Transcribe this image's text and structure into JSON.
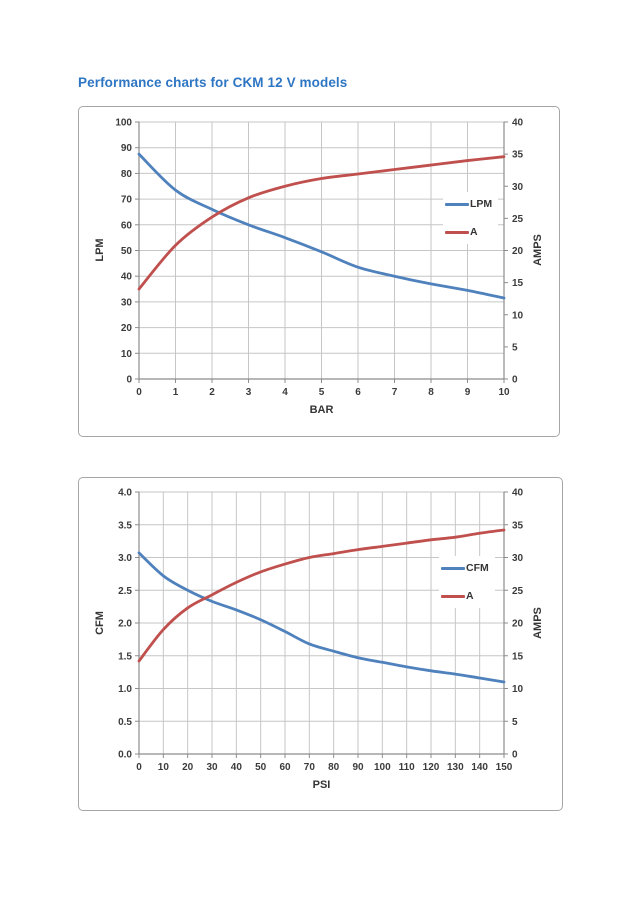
{
  "page": {
    "title": "Performance charts for CKM 12 V models"
  },
  "colors": {
    "series_blue": "#4F81BD",
    "series_red": "#C0504D",
    "gridline": "#C6C6C6",
    "axis_line": "#8C8C8C",
    "tick_text": "#3b3b3b",
    "title_blue": "#2e76c3"
  },
  "chart_data": [
    {
      "type": "line",
      "title": "",
      "xlabel": "BAR",
      "ylabel_left": "LPM",
      "ylabel_right": "AMPS",
      "xlim": [
        0,
        10
      ],
      "x_ticks": [
        "0",
        "1",
        "2",
        "3",
        "4",
        "5",
        "6",
        "7",
        "8",
        "9",
        "10"
      ],
      "x": [
        0,
        1,
        2,
        3,
        4,
        5,
        6,
        7,
        8,
        9,
        10
      ],
      "left_axis": {
        "range": [
          0,
          100
        ],
        "ticks": [
          "0",
          "10",
          "20",
          "30",
          "40",
          "50",
          "60",
          "70",
          "80",
          "90",
          "100"
        ]
      },
      "right_axis": {
        "range": [
          0,
          40
        ],
        "ticks": [
          "0",
          "5",
          "10",
          "15",
          "20",
          "25",
          "30",
          "35",
          "40"
        ]
      },
      "grid": true,
      "legend_position": "inside-right",
      "series": [
        {
          "name": "LPM",
          "axis": "left",
          "color": "#4F81BD",
          "values": [
            87.5,
            73.5,
            66,
            60,
            55,
            49.5,
            43.5,
            40,
            37,
            34.5,
            31.5
          ]
        },
        {
          "name": "A",
          "axis": "right",
          "color": "#C0504D",
          "values": [
            14,
            20.8,
            25.2,
            28.2,
            30,
            31.2,
            31.9,
            32.6,
            33.3,
            34,
            34.6
          ]
        }
      ]
    },
    {
      "type": "line",
      "title": "",
      "xlabel": "PSI",
      "ylabel_left": "CFM",
      "ylabel_right": "AMPS",
      "xlim": [
        0,
        150
      ],
      "x_ticks": [
        "0",
        "10",
        "20",
        "30",
        "40",
        "50",
        "60",
        "70",
        "80",
        "90",
        "100",
        "110",
        "120",
        "130",
        "140",
        "150"
      ],
      "x": [
        0,
        10,
        20,
        30,
        40,
        50,
        60,
        70,
        80,
        90,
        100,
        110,
        120,
        130,
        140,
        150
      ],
      "left_axis": {
        "range": [
          0,
          4
        ],
        "ticks": [
          "0.0",
          "0.5",
          "1.0",
          "1.5",
          "2.0",
          "2.5",
          "3.0",
          "3.5",
          "4.0"
        ]
      },
      "right_axis": {
        "range": [
          0,
          40
        ],
        "ticks": [
          "0",
          "5",
          "10",
          "15",
          "20",
          "25",
          "30",
          "35",
          "40"
        ]
      },
      "grid": true,
      "legend_position": "inside-right",
      "series": [
        {
          "name": "CFM",
          "axis": "left",
          "color": "#4F81BD",
          "values": [
            3.07,
            2.72,
            2.5,
            2.33,
            2.2,
            2.05,
            1.87,
            1.68,
            1.57,
            1.47,
            1.4,
            1.33,
            1.27,
            1.22,
            1.16,
            1.1
          ]
        },
        {
          "name": "A",
          "axis": "right",
          "color": "#C0504D",
          "values": [
            14.2,
            19.0,
            22.3,
            24.3,
            26.2,
            27.8,
            29.0,
            30.0,
            30.6,
            31.2,
            31.7,
            32.2,
            32.7,
            33.1,
            33.7,
            34.2
          ]
        }
      ]
    }
  ]
}
